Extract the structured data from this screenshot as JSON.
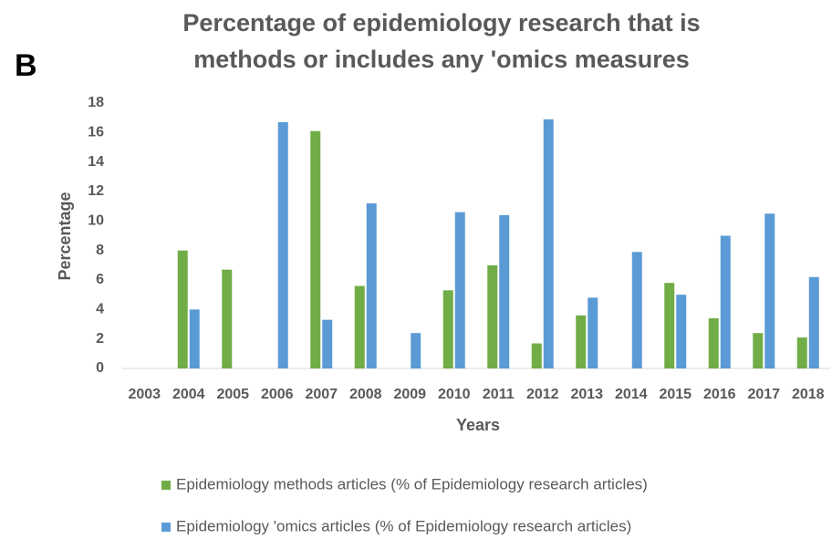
{
  "chart_data": {
    "type": "bar",
    "panel_label": "B",
    "title": [
      "Percentage of epidemiology research that is",
      "methods or includes any 'omics measures"
    ],
    "x_label": "Years",
    "y_label": "Percentage",
    "categories": [
      "2003",
      "2004",
      "2005",
      "2006",
      "2007",
      "2008",
      "2009",
      "2010",
      "2011",
      "2012",
      "2013",
      "2014",
      "2015",
      "2016",
      "2017",
      "2018"
    ],
    "series": [
      {
        "name": "Epidemiology methods articles (% of Epidemiology research articles)",
        "color": "#70ad47",
        "values": [
          0,
          8.0,
          6.7,
          0,
          16.1,
          5.6,
          0,
          5.3,
          7.0,
          1.7,
          3.6,
          0,
          5.8,
          3.4,
          2.4,
          2.1
        ]
      },
      {
        "name": "Epidemiology 'omics articles (% of Epidemiology research articles)",
        "color": "#5b9bd5",
        "values": [
          0,
          4.0,
          0,
          16.7,
          3.3,
          11.2,
          2.4,
          10.6,
          10.4,
          16.9,
          4.8,
          7.9,
          5.0,
          9.0,
          10.5,
          6.2
        ]
      }
    ],
    "ylim": [
      0,
      18
    ],
    "yticks": [
      0,
      2,
      4,
      6,
      8,
      10,
      12,
      14,
      16,
      18
    ],
    "grid": false,
    "legend": "bottom"
  }
}
